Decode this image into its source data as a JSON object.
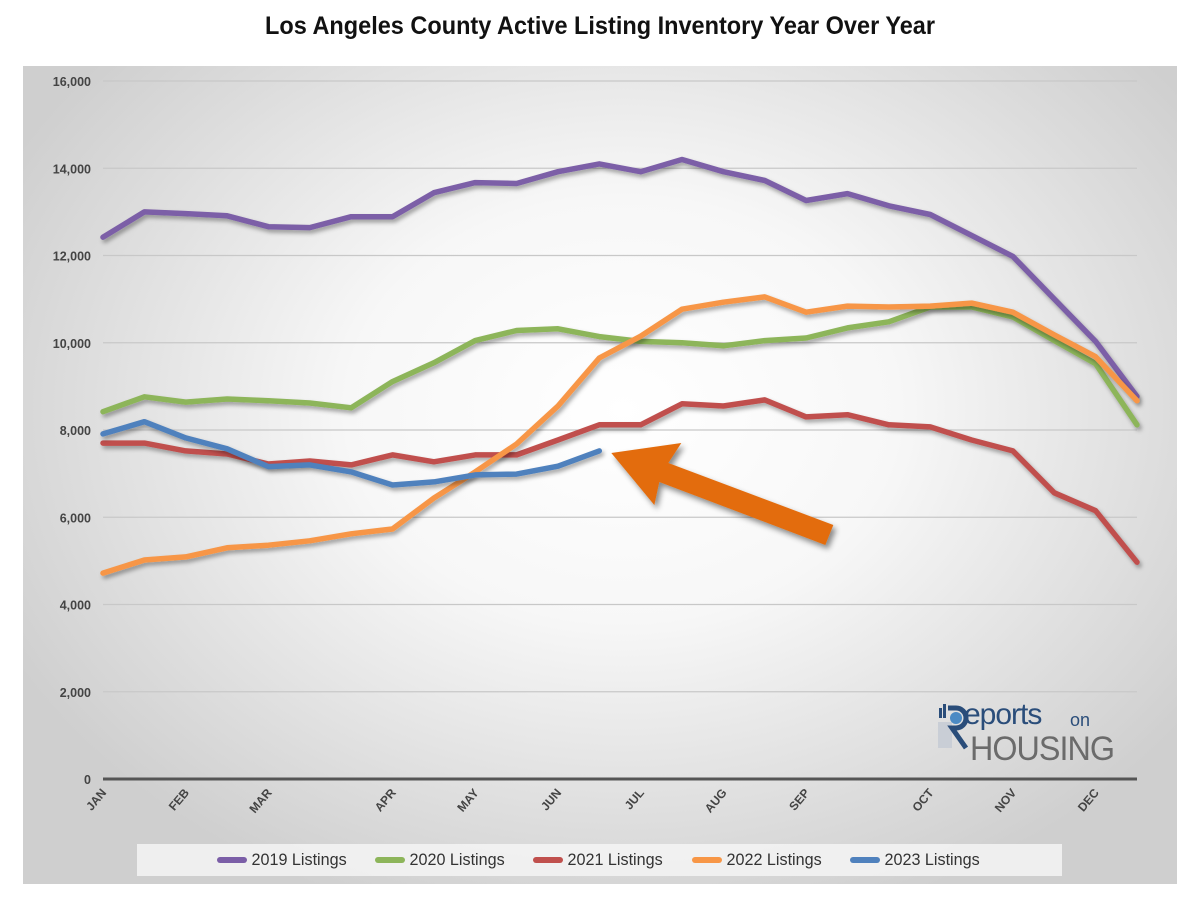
{
  "chart_data": {
    "type": "line",
    "title": "Los Angeles County Active Listing Inventory Year Over Year",
    "xlabel": "",
    "ylabel": "",
    "ylim": [
      0,
      16000
    ],
    "yticks": [
      0,
      2000,
      4000,
      6000,
      8000,
      10000,
      12000,
      14000,
      16000
    ],
    "ytick_labels": [
      "0",
      "2,000",
      "4,000",
      "6,000",
      "8,000",
      "10,000",
      "12,000",
      "14,000",
      "16,000"
    ],
    "x_point_count": 26,
    "month_labels": [
      {
        "label": "JAN",
        "index": 0
      },
      {
        "label": "FEB",
        "index": 2
      },
      {
        "label": "MAR",
        "index": 4
      },
      {
        "label": "APR",
        "index": 7
      },
      {
        "label": "MAY",
        "index": 9
      },
      {
        "label": "JUN",
        "index": 11
      },
      {
        "label": "JUL",
        "index": 13
      },
      {
        "label": "AUG",
        "index": 15
      },
      {
        "label": "SEP",
        "index": 17
      },
      {
        "label": "OCT",
        "index": 20
      },
      {
        "label": "NOV",
        "index": 22
      },
      {
        "label": "DEC",
        "index": 24
      }
    ],
    "grid": true,
    "legend_position": "bottom",
    "series": [
      {
        "name": "2019 Listings",
        "color": "#7b5ea7",
        "values": [
          12420,
          13000,
          12960,
          12910,
          12660,
          12640,
          12890,
          12890,
          13440,
          13670,
          13650,
          13920,
          14100,
          13920,
          14200,
          13920,
          13720,
          13260,
          13420,
          13140,
          12940,
          12460,
          11980,
          11000,
          10030,
          8770
        ]
      },
      {
        "name": "2020 Listings",
        "color": "#8db55a",
        "values": [
          8420,
          8760,
          8640,
          8710,
          8670,
          8620,
          8510,
          9110,
          9540,
          10050,
          10280,
          10320,
          10140,
          10030,
          10000,
          9930,
          10050,
          10110,
          10340,
          10480,
          10820,
          10820,
          10590,
          10050,
          9520,
          8120
        ]
      },
      {
        "name": "2021 Listings",
        "color": "#c0504d",
        "values": [
          7700,
          7700,
          7520,
          7450,
          7220,
          7290,
          7200,
          7430,
          7270,
          7430,
          7430,
          7770,
          8120,
          8120,
          8600,
          8550,
          8690,
          8300,
          8350,
          8120,
          8070,
          7770,
          7520,
          6560,
          6150,
          4970
        ]
      },
      {
        "name": "2022 Listings",
        "color": "#f79646",
        "values": [
          4720,
          5020,
          5090,
          5300,
          5360,
          5460,
          5620,
          5730,
          6440,
          7040,
          7680,
          8550,
          9650,
          10150,
          10770,
          10930,
          11050,
          10700,
          10840,
          10820,
          10840,
          10910,
          10700,
          10180,
          9680,
          8670
        ]
      },
      {
        "name": "2023 Listings",
        "color": "#4f81bd",
        "values": [
          7910,
          8190,
          7820,
          7570,
          7160,
          7200,
          7040,
          6740,
          6810,
          6970,
          6990,
          7170,
          7520
        ]
      }
    ],
    "annotations": [
      {
        "type": "arrow",
        "color": "#e36c0a",
        "points_to": "2023 Listings latest value"
      }
    ]
  },
  "logo": {
    "reports": "eports",
    "on": "on",
    "housing": "HOUSING"
  }
}
